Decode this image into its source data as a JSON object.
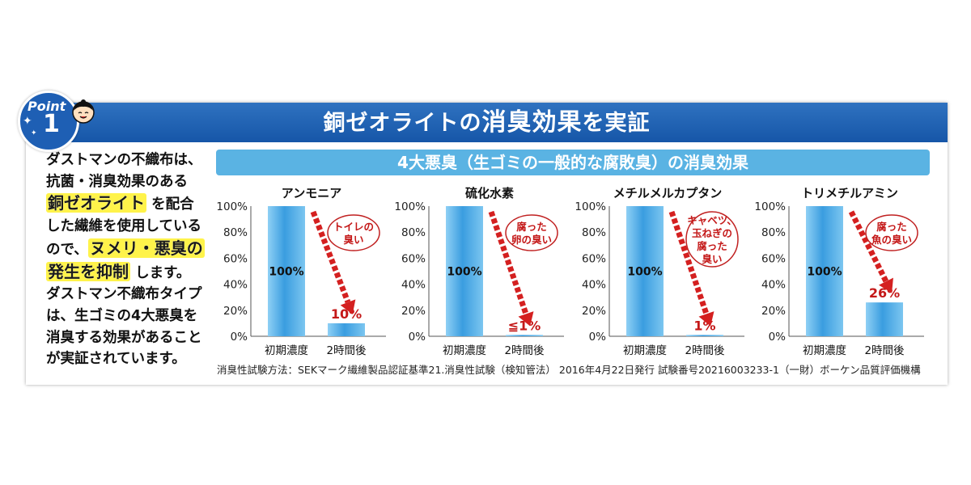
{
  "colors": {
    "banner": "#1e5fb4",
    "subtitle_bar": "#5ab3e3",
    "bar_blue": "#3a9de0",
    "arrow_red": "#d42020",
    "highlight": "#fff34a"
  },
  "point": {
    "label": "Point",
    "number": "1"
  },
  "banner": {
    "title_part1": "銅ゼオライトの",
    "title_part2": "消臭効果",
    "title_part3": "を実証"
  },
  "left_text": {
    "line1": "ダストマンの不織布は、",
    "line2": "抗菌・消臭効果のある",
    "line3_highlight": "銅ゼオライト",
    "line3_rest": "を配合",
    "line4": "した繊維を使用している",
    "line5_start": "ので、",
    "line5_highlight": "ヌメリ・悪臭の",
    "line6_highlight": "発生を抑制",
    "line6_rest": "します。",
    "line7": "ダストマン不織布タイプ",
    "line8": "は、生ゴミの4大悪臭を",
    "line9": "消臭する効果があること",
    "line10": "が実証されています。"
  },
  "subtitle": "4大悪臭（生ゴミの一般的な腐敗臭）の消臭効果",
  "chart_data": [
    {
      "type": "bar",
      "title": "アンモニア",
      "categories": [
        "初期濃度",
        "2時間後"
      ],
      "values": [
        100,
        10
      ],
      "value_labels": [
        "100%",
        "10%"
      ],
      "ylim": [
        0,
        100
      ],
      "yticks": [
        "0%",
        "20%",
        "40%",
        "60%",
        "80%",
        "100%"
      ],
      "annotation": [
        "トイレの",
        "臭い"
      ]
    },
    {
      "type": "bar",
      "title": "硫化水素",
      "categories": [
        "初期濃度",
        "2時間後"
      ],
      "values": [
        100,
        1
      ],
      "value_labels": [
        "100%",
        "≦1%"
      ],
      "ylim": [
        0,
        100
      ],
      "yticks": [
        "0%",
        "20%",
        "40%",
        "60%",
        "80%",
        "100%"
      ],
      "annotation": [
        "腐った",
        "卵の臭い"
      ]
    },
    {
      "type": "bar",
      "title": "メチルメルカプタン",
      "categories": [
        "初期濃度",
        "2時間後"
      ],
      "values": [
        100,
        1
      ],
      "value_labels": [
        "100%",
        "1%"
      ],
      "ylim": [
        0,
        100
      ],
      "yticks": [
        "0%",
        "20%",
        "40%",
        "60%",
        "80%",
        "100%"
      ],
      "annotation": [
        "キャベツ、",
        "玉ねぎの",
        "腐った",
        "臭い"
      ]
    },
    {
      "type": "bar",
      "title": "トリメチルアミン",
      "categories": [
        "初期濃度",
        "2時間後"
      ],
      "values": [
        100,
        26
      ],
      "value_labels": [
        "100%",
        "26%"
      ],
      "ylim": [
        0,
        100
      ],
      "yticks": [
        "0%",
        "20%",
        "40%",
        "60%",
        "80%",
        "100%"
      ],
      "annotation": [
        "腐った",
        "魚の臭い"
      ]
    }
  ],
  "footnote": "消臭性試験方法：SEKマーク繊維製品認証基準21.消臭性試験（検知管法）  2016年4月22日発行  試験番号20216003233-1（一財）ボーケン品質評価機構"
}
